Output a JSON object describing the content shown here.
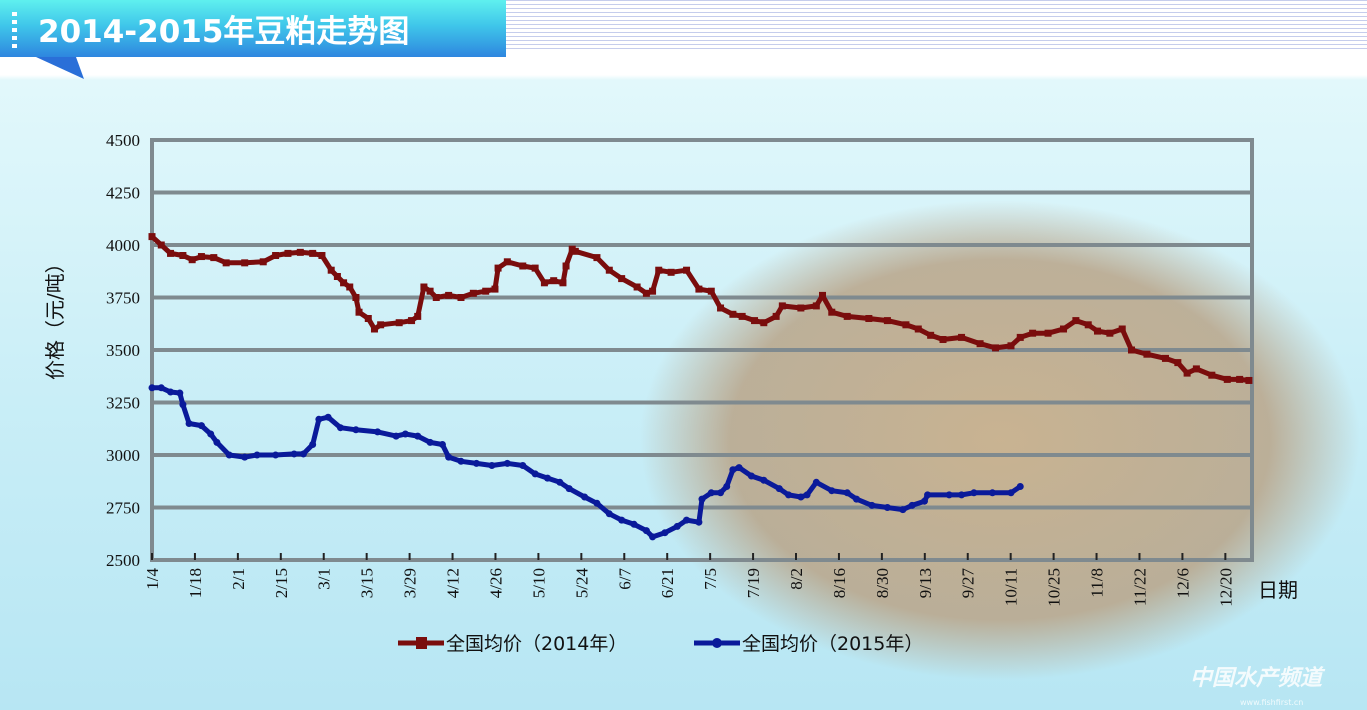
{
  "header": {
    "title": "2014-2015年豆粕走势图"
  },
  "watermark": {
    "name": "中国水产频道",
    "url": "www.fishfirst.cn"
  },
  "chart_data": {
    "type": "line",
    "title": "2014-2015年豆粕走势图",
    "xlabel": "日期",
    "ylabel": "价格（元/吨）",
    "ylim": [
      2500,
      4500
    ],
    "yticks": [
      "2500",
      "2750",
      "3000",
      "3250",
      "3500",
      "3750",
      "4000",
      "4250",
      "4500"
    ],
    "xticks": [
      "1/4",
      "1/18",
      "2/1",
      "2/15",
      "3/1",
      "3/15",
      "3/29",
      "4/12",
      "4/26",
      "5/10",
      "5/24",
      "6/7",
      "6/21",
      "7/5",
      "7/19",
      "8/2",
      "8/16",
      "8/30",
      "9/13",
      "9/27",
      "10/11",
      "10/25",
      "11/8",
      "11/22",
      "12/6",
      "12/20"
    ],
    "x_unit": "days since 1/4",
    "xlim": [
      0,
      356
    ],
    "grid": true,
    "legend_position": "bottom",
    "colors": {
      "s2014": "#7a0d0d",
      "s2015": "#0a1a9a",
      "grid": "#7f8a8f"
    },
    "series": [
      {
        "name": "全国均价（2014年）",
        "x": [
          0,
          3,
          6,
          10,
          13,
          16,
          20,
          24,
          30,
          36,
          40,
          44,
          48,
          52,
          55,
          58,
          60,
          62,
          64,
          66,
          67,
          70,
          72,
          74,
          80,
          84,
          86,
          88,
          90,
          92,
          96,
          100,
          104,
          108,
          111,
          112,
          115,
          120,
          124,
          127,
          130,
          133,
          134,
          136,
          137,
          144,
          148,
          152,
          157,
          160,
          162,
          164,
          168,
          173,
          177,
          181,
          184,
          188,
          191,
          195,
          198,
          202,
          204,
          210,
          215,
          217,
          220,
          225,
          232,
          238,
          244,
          248,
          252,
          256,
          262,
          268,
          273,
          278,
          281,
          285,
          290,
          295,
          299,
          303,
          306,
          310,
          314,
          317,
          322,
          328,
          332,
          335,
          338,
          343,
          348,
          352,
          355
        ],
        "y": [
          4040,
          4000,
          3960,
          3950,
          3930,
          3945,
          3940,
          3915,
          3915,
          3920,
          3950,
          3960,
          3965,
          3960,
          3950,
          3880,
          3850,
          3820,
          3800,
          3750,
          3680,
          3650,
          3600,
          3620,
          3630,
          3640,
          3660,
          3800,
          3780,
          3750,
          3760,
          3750,
          3770,
          3780,
          3790,
          3890,
          3920,
          3900,
          3890,
          3820,
          3830,
          3820,
          3900,
          3980,
          3970,
          3940,
          3880,
          3840,
          3800,
          3770,
          3780,
          3880,
          3870,
          3880,
          3790,
          3780,
          3700,
          3670,
          3660,
          3640,
          3630,
          3660,
          3710,
          3700,
          3710,
          3760,
          3680,
          3660,
          3650,
          3640,
          3620,
          3600,
          3570,
          3550,
          3560,
          3530,
          3510,
          3520,
          3560,
          3580,
          3580,
          3600,
          3640,
          3620,
          3590,
          3580,
          3600,
          3500,
          3480,
          3460,
          3440,
          3390,
          3410,
          3380,
          3360,
          3360,
          3355
        ]
      },
      {
        "name": "全国均价（2015年）",
        "x": [
          0,
          3,
          6,
          9,
          10,
          12,
          16,
          19,
          21,
          25,
          30,
          34,
          40,
          46,
          49,
          52,
          54,
          57,
          61,
          66,
          73,
          79,
          82,
          86,
          90,
          94,
          96,
          100,
          105,
          110,
          115,
          120,
          124,
          128,
          132,
          135,
          140,
          144,
          148,
          152,
          156,
          160,
          162,
          166,
          170,
          173,
          177,
          178,
          181,
          184,
          186,
          188,
          190,
          194,
          198,
          203,
          206,
          210,
          212,
          215,
          220,
          225,
          228,
          233,
          238,
          243,
          246,
          250,
          251,
          258,
          262,
          266,
          272,
          278,
          281
        ],
        "y": [
          3320,
          3320,
          3300,
          3295,
          3240,
          3150,
          3140,
          3100,
          3060,
          3000,
          2990,
          3000,
          3000,
          3005,
          3005,
          3050,
          3170,
          3180,
          3130,
          3120,
          3110,
          3090,
          3100,
          3090,
          3060,
          3050,
          2990,
          2970,
          2960,
          2950,
          2960,
          2950,
          2910,
          2890,
          2870,
          2840,
          2800,
          2770,
          2720,
          2690,
          2670,
          2640,
          2610,
          2630,
          2660,
          2690,
          2680,
          2790,
          2820,
          2820,
          2850,
          2930,
          2940,
          2900,
          2880,
          2840,
          2810,
          2800,
          2810,
          2870,
          2830,
          2820,
          2790,
          2760,
          2750,
          2740,
          2760,
          2780,
          2810,
          2810,
          2810,
          2820,
          2820,
          2820,
          2850
        ]
      }
    ]
  }
}
